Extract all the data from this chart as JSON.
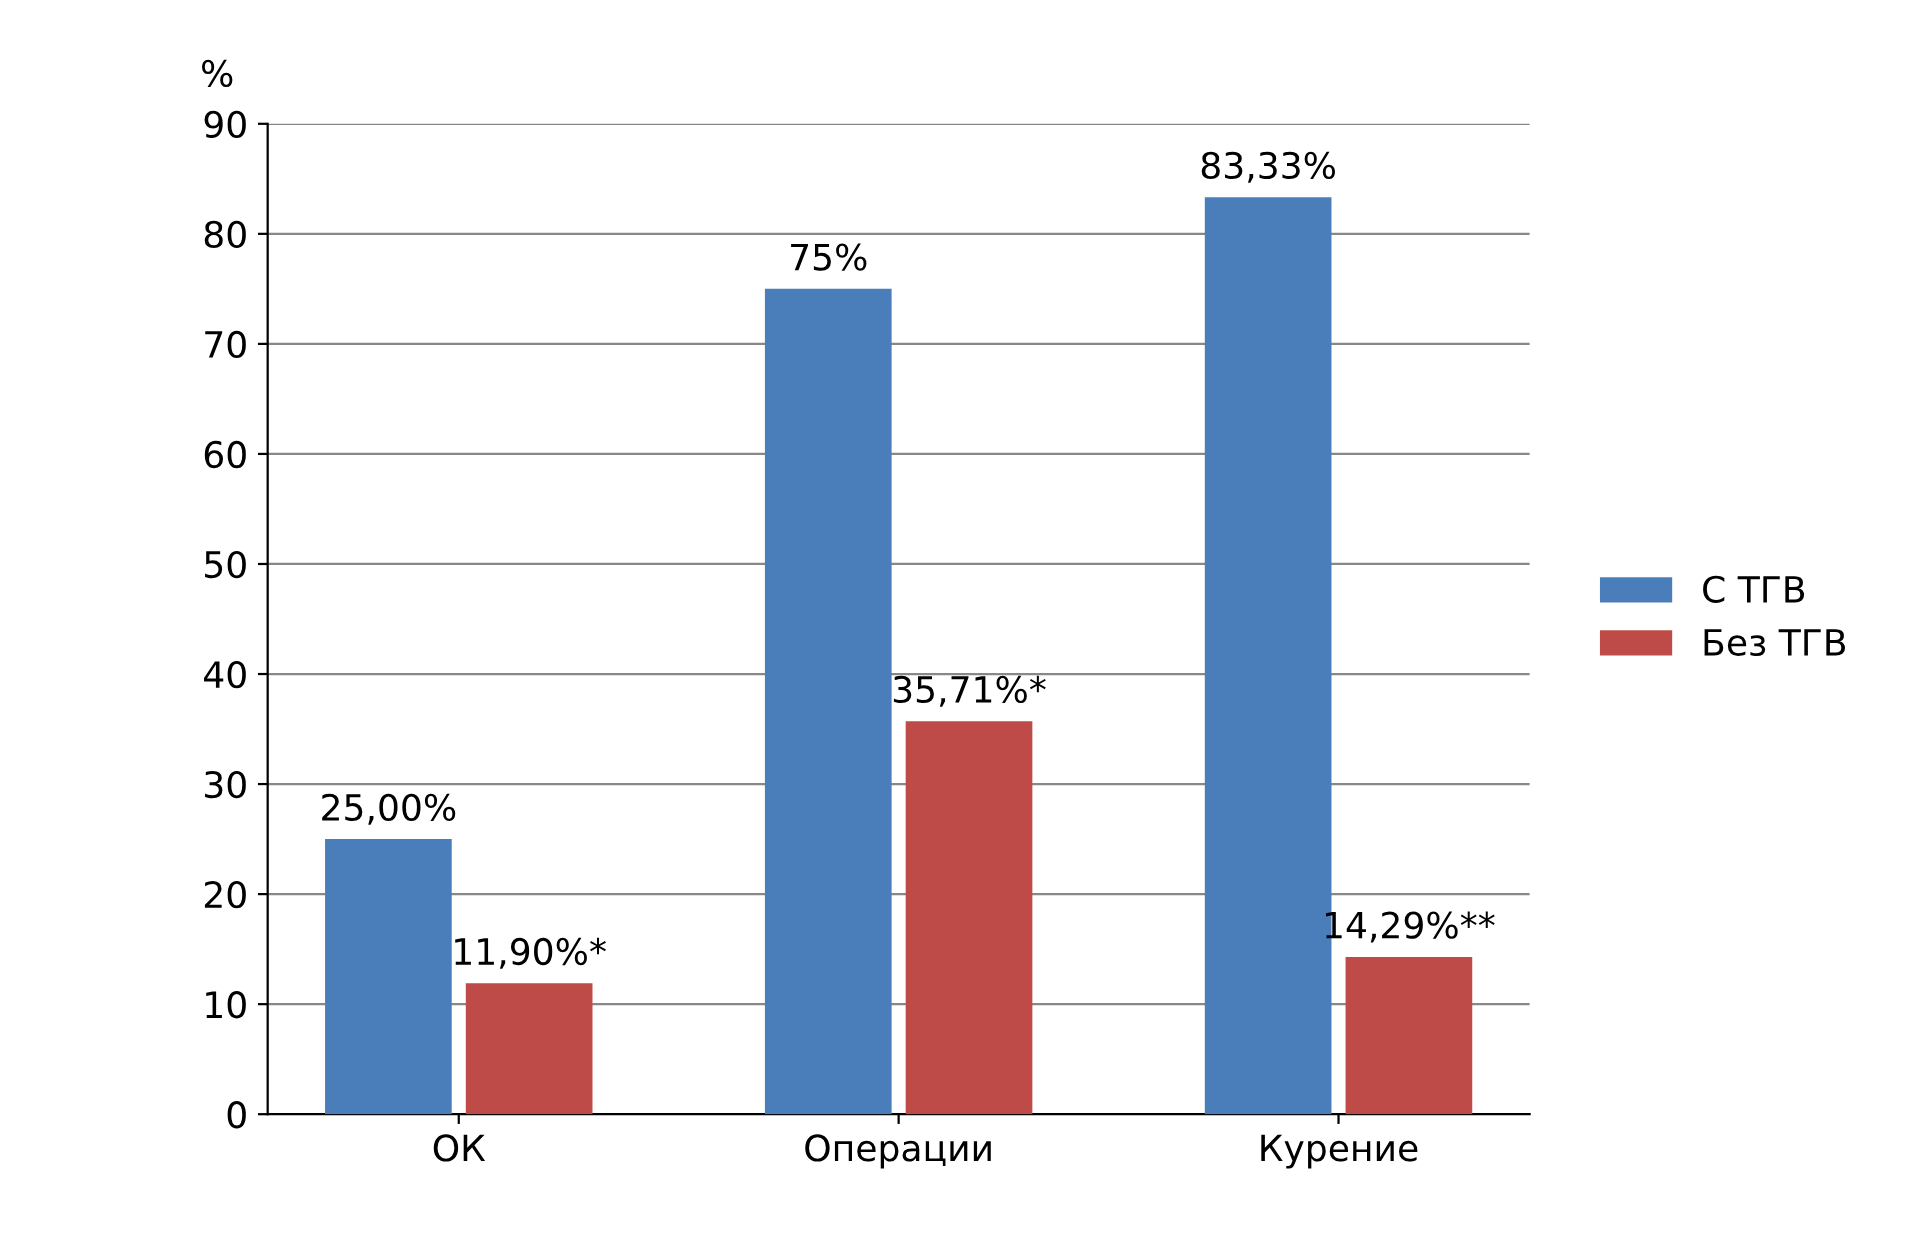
{
  "chart_data": {
    "type": "bar",
    "ylabel": "%",
    "categories": [
      "ОК",
      "Операции",
      "Курение"
    ],
    "series": [
      {
        "name": "С ТГВ",
        "color": "#4a7ebb",
        "values": [
          25.0,
          75,
          83.33
        ],
        "value_labels": [
          "25,00%",
          "75%",
          "83,33%"
        ]
      },
      {
        "name": "Без ТГВ",
        "color": "#be4b48",
        "values": [
          11.9,
          35.71,
          14.29
        ],
        "value_labels": [
          "11,90%*",
          "35,71%*",
          "14,29%**"
        ]
      }
    ],
    "ylim": [
      0,
      90
    ],
    "yticks": [
      0,
      10,
      20,
      30,
      40,
      50,
      60,
      70,
      80,
      90
    ],
    "grid": "y",
    "legend": "right"
  }
}
